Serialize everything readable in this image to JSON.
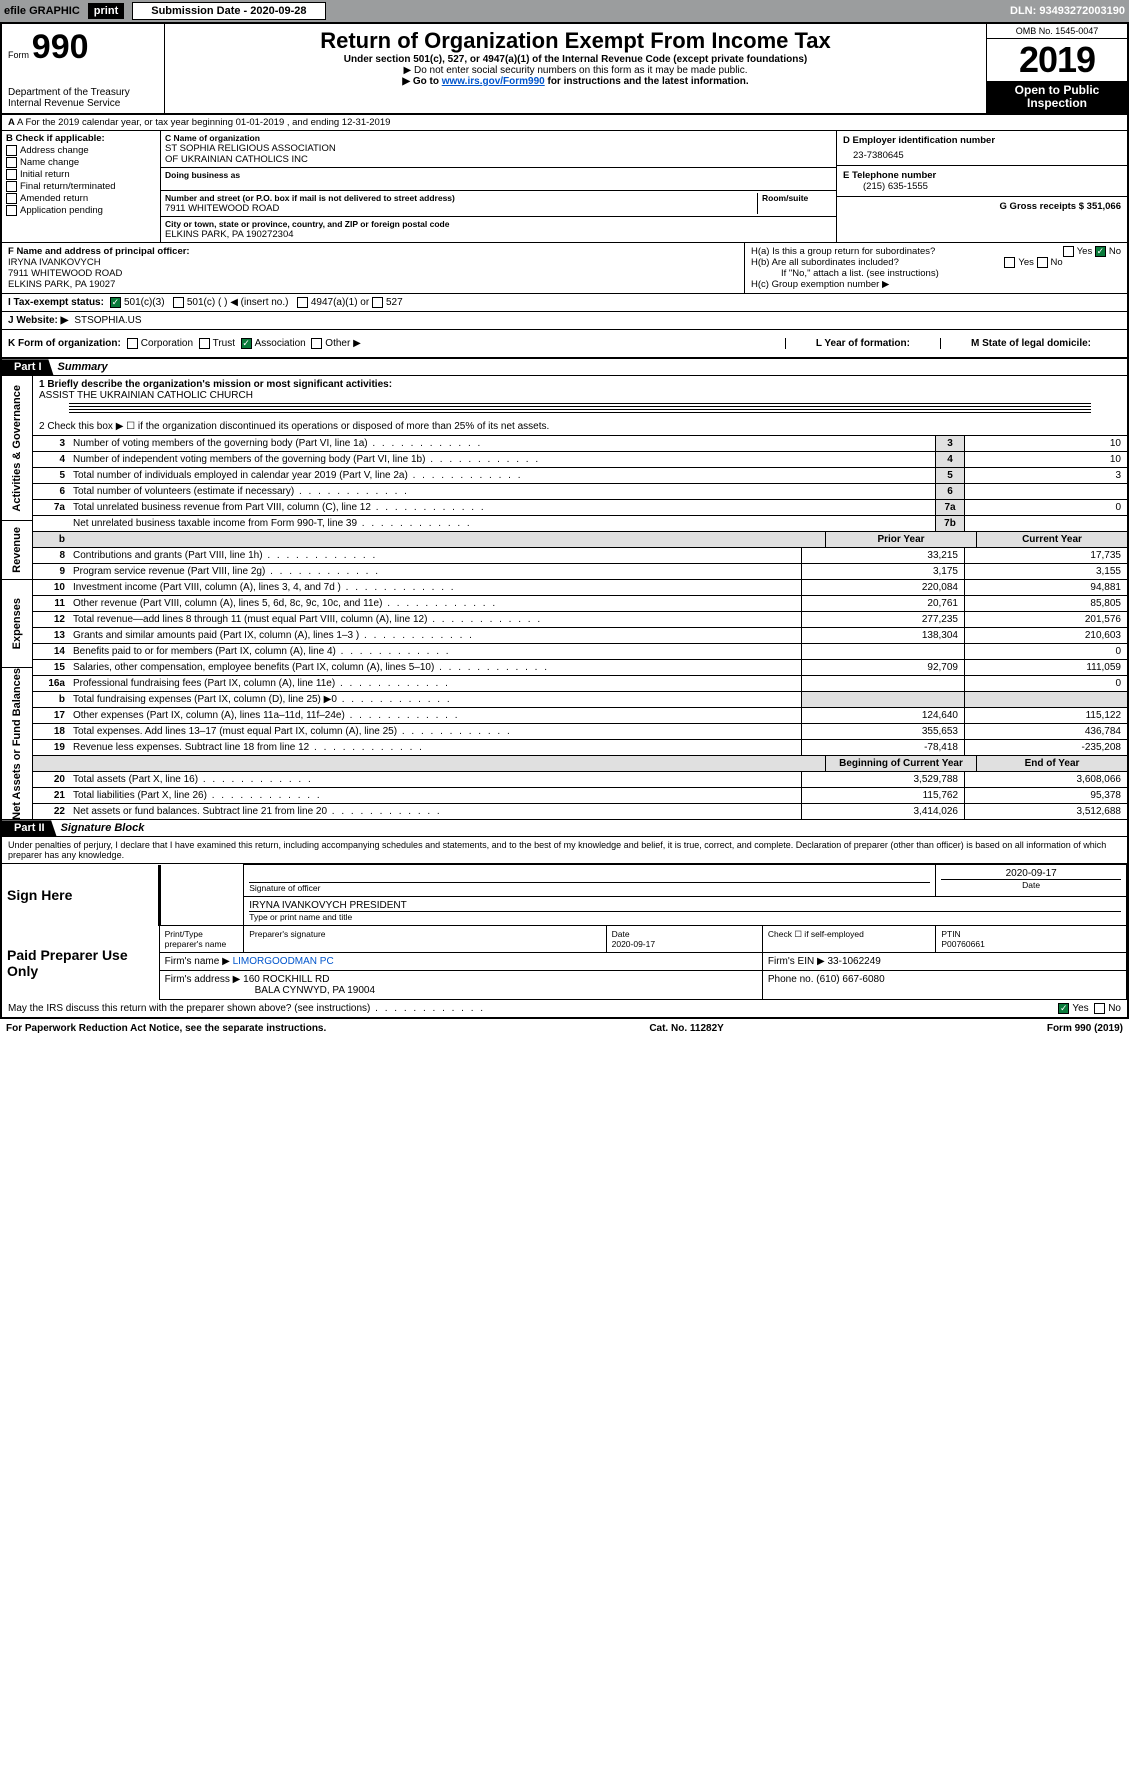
{
  "top_bar": {
    "efile_label": "efile GRAPHIC",
    "print_btn": "print",
    "submission_label": "Submission Date - 2020-09-28",
    "dln": "DLN: 93493272003190"
  },
  "header": {
    "form_word": "Form",
    "form_number": "990",
    "dept1": "Department of the Treasury",
    "dept2": "Internal Revenue Service",
    "title": "Return of Organization Exempt From Income Tax",
    "sub1": "Under section 501(c), 527, or 4947(a)(1) of the Internal Revenue Code (except private foundations)",
    "sub2": "▶ Do not enter social security numbers on this form as it may be made public.",
    "sub3_pre": "▶ Go to ",
    "sub3_link": "www.irs.gov/Form990",
    "sub3_post": " for instructions and the latest information.",
    "omb": "OMB No. 1545-0047",
    "year": "2019",
    "open_public": "Open to Public Inspection"
  },
  "row_a": "A For the 2019 calendar year, or tax year beginning 01-01-2019   , and ending 12-31-2019",
  "section_b": {
    "header": "B Check if applicable:",
    "opts": [
      "Address change",
      "Name change",
      "Initial return",
      "Final return/terminated",
      "Amended return",
      "Application pending"
    ]
  },
  "section_c": {
    "name_label": "C Name of organization",
    "name1": "ST SOPHIA RELIGIOUS ASSOCIATION",
    "name2": "OF UKRAINIAN CATHOLICS INC",
    "dba_label": "Doing business as",
    "addr_label": "Number and street (or P.O. box if mail is not delivered to street address)",
    "room_label": "Room/suite",
    "addr": "7911 WHITEWOOD ROAD",
    "city_label": "City or town, state or province, country, and ZIP or foreign postal code",
    "city": "ELKINS PARK, PA  190272304"
  },
  "section_de": {
    "d_label": "D Employer identification number",
    "ein": "23-7380645",
    "e_label": "E Telephone number",
    "phone": "(215) 635-1555",
    "g_label": "G Gross receipts $ 351,066"
  },
  "section_f": {
    "label": "F Name and address of principal officer:",
    "name": "IRYNA IVANKOVYCH",
    "addr": "7911 WHITEWOOD ROAD",
    "city": "ELKINS PARK, PA  19027"
  },
  "section_h": {
    "ha": "H(a)  Is this a group return for subordinates?",
    "hb": "H(b)  Are all subordinates included?",
    "hb_note": "If \"No,\" attach a list. (see instructions)",
    "hc": "H(c)  Group exemption number ▶",
    "yes": "Yes",
    "no": "No"
  },
  "row_i": {
    "label": "I  Tax-exempt status:",
    "o1": "501(c)(3)",
    "o2": "501(c) (   ) ◀ (insert no.)",
    "o3": "4947(a)(1) or",
    "o4": "527"
  },
  "row_j": {
    "label": "J   Website: ▶",
    "val": "STSOPHIA.US"
  },
  "row_k": {
    "label": "K Form of organization:",
    "o1": "Corporation",
    "o2": "Trust",
    "o3": "Association",
    "o4": "Other ▶"
  },
  "row_l": {
    "label": "L Year of formation:"
  },
  "row_m": {
    "label": "M State of legal domicile:"
  },
  "part1": {
    "tag": "Part I",
    "title": "Summary",
    "sidetabs": [
      "Activities & Governance",
      "Revenue",
      "Expenses",
      "Net Assets or Fund Balances"
    ],
    "q1_label": "1  Briefly describe the organization's mission or most significant activities:",
    "q1_val": "ASSIST THE UKRAINIAN CATHOLIC CHURCH",
    "q2": "2   Check this box ▶ ☐  if the organization discontinued its operations or disposed of more than 25% of its net assets.",
    "rows_3_7": [
      {
        "n": "3",
        "t": "Number of voting members of the governing body (Part VI, line 1a)",
        "b": "3",
        "v": "10"
      },
      {
        "n": "4",
        "t": "Number of independent voting members of the governing body (Part VI, line 1b)",
        "b": "4",
        "v": "10"
      },
      {
        "n": "5",
        "t": "Total number of individuals employed in calendar year 2019 (Part V, line 2a)",
        "b": "5",
        "v": "3"
      },
      {
        "n": "6",
        "t": "Total number of volunteers (estimate if necessary)",
        "b": "6",
        "v": ""
      },
      {
        "n": "7a",
        "t": "Total unrelated business revenue from Part VIII, column (C), line 12",
        "b": "7a",
        "v": "0"
      },
      {
        "n": "",
        "t": "Net unrelated business taxable income from Form 990-T, line 39",
        "b": "7b",
        "v": ""
      }
    ],
    "col_prior": "Prior Year",
    "col_current": "Current Year",
    "rows_8_12": [
      {
        "n": "8",
        "t": "Contributions and grants (Part VIII, line 1h)",
        "p": "33,215",
        "c": "17,735"
      },
      {
        "n": "9",
        "t": "Program service revenue (Part VIII, line 2g)",
        "p": "3,175",
        "c": "3,155"
      },
      {
        "n": "10",
        "t": "Investment income (Part VIII, column (A), lines 3, 4, and 7d )",
        "p": "220,084",
        "c": "94,881"
      },
      {
        "n": "11",
        "t": "Other revenue (Part VIII, column (A), lines 5, 6d, 8c, 9c, 10c, and 11e)",
        "p": "20,761",
        "c": "85,805"
      },
      {
        "n": "12",
        "t": "Total revenue—add lines 8 through 11 (must equal Part VIII, column (A), line 12)",
        "p": "277,235",
        "c": "201,576"
      }
    ],
    "rows_13_19": [
      {
        "n": "13",
        "t": "Grants and similar amounts paid (Part IX, column (A), lines 1–3 )",
        "p": "138,304",
        "c": "210,603"
      },
      {
        "n": "14",
        "t": "Benefits paid to or for members (Part IX, column (A), line 4)",
        "p": "",
        "c": "0"
      },
      {
        "n": "15",
        "t": "Salaries, other compensation, employee benefits (Part IX, column (A), lines 5–10)",
        "p": "92,709",
        "c": "111,059"
      },
      {
        "n": "16a",
        "t": "Professional fundraising fees (Part IX, column (A), line 11e)",
        "p": "",
        "c": "0"
      },
      {
        "n": "b",
        "t": "Total fundraising expenses (Part IX, column (D), line 25) ▶0",
        "p": "shade",
        "c": "shade"
      },
      {
        "n": "17",
        "t": "Other expenses (Part IX, column (A), lines 11a–11d, 11f–24e)",
        "p": "124,640",
        "c": "115,122"
      },
      {
        "n": "18",
        "t": "Total expenses. Add lines 13–17 (must equal Part IX, column (A), line 25)",
        "p": "355,653",
        "c": "436,784"
      },
      {
        "n": "19",
        "t": "Revenue less expenses. Subtract line 18 from line 12",
        "p": "-78,418",
        "c": "-235,208"
      }
    ],
    "col_begin": "Beginning of Current Year",
    "col_end": "End of Year",
    "rows_20_22": [
      {
        "n": "20",
        "t": "Total assets (Part X, line 16)",
        "p": "3,529,788",
        "c": "3,608,066"
      },
      {
        "n": "21",
        "t": "Total liabilities (Part X, line 26)",
        "p": "115,762",
        "c": "95,378"
      },
      {
        "n": "22",
        "t": "Net assets or fund balances. Subtract line 21 from line 20",
        "p": "3,414,026",
        "c": "3,512,688"
      }
    ]
  },
  "part2": {
    "tag": "Part II",
    "title": "Signature Block",
    "perjury": "Under penalties of perjury, I declare that I have examined this return, including accompanying schedules and statements, and to the best of my knowledge and belief, it is true, correct, and complete. Declaration of preparer (other than officer) is based on all information of which preparer has any knowledge.",
    "sign_here": "Sign Here",
    "sig_officer": "Signature of officer",
    "sig_date": "2020-09-17",
    "date_label": "Date",
    "officer_name": "IRYNA IVANKOVYCH  PRESIDENT",
    "type_name": "Type or print name and title",
    "paid_prep": "Paid Preparer Use Only",
    "h_prep_name": "Print/Type preparer's name",
    "h_prep_sig": "Preparer's signature",
    "h_date": "Date",
    "prep_date": "2020-09-17",
    "h_check": "Check ☐ if self-employed",
    "h_ptin": "PTIN",
    "ptin": "P00760661",
    "firm_name_l": "Firm's name    ▶",
    "firm_name": "LIMORGOODMAN PC",
    "firm_ein_l": "Firm's EIN ▶",
    "firm_ein": "33-1062249",
    "firm_addr_l": "Firm's address ▶",
    "firm_addr1": "160 ROCKHILL RD",
    "firm_addr2": "BALA CYNWYD, PA  19004",
    "firm_phone_l": "Phone no.",
    "firm_phone": "(610) 667-6080",
    "discuss": "May the IRS discuss this return with the preparer shown above? (see instructions)",
    "yes": "Yes",
    "no": "No"
  },
  "footer": {
    "left": "For Paperwork Reduction Act Notice, see the separate instructions.",
    "mid": "Cat. No. 11282Y",
    "right": "Form 990 (2019)"
  }
}
